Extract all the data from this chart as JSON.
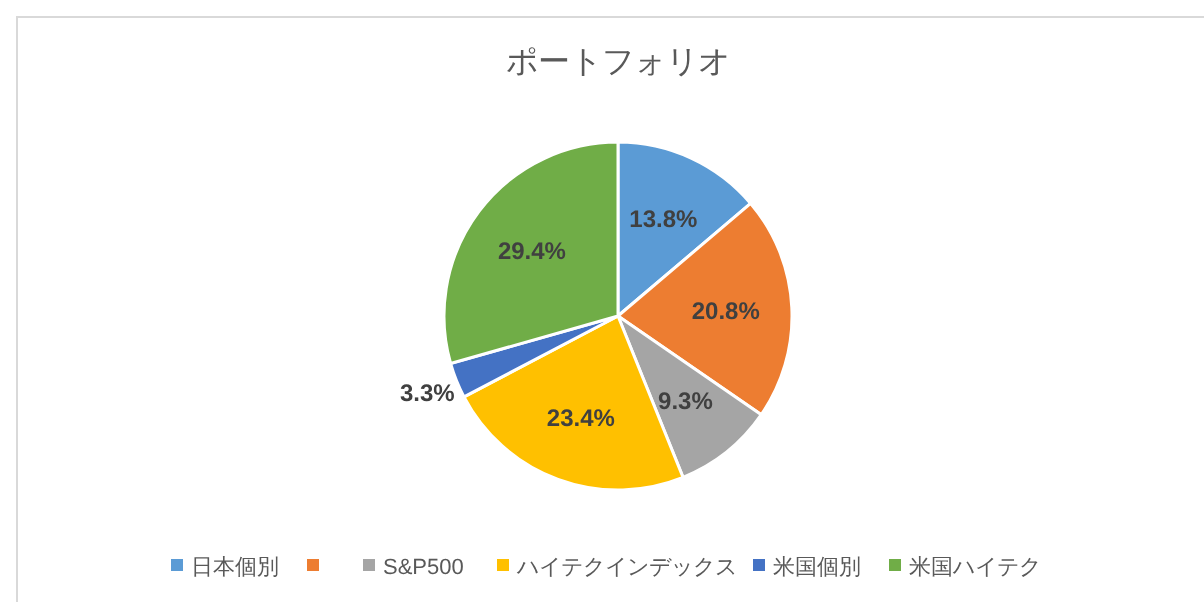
{
  "chart_data": {
    "type": "pie",
    "title": "ポートフォリオ",
    "categories": [
      "日本個別",
      null,
      "S&P500",
      "ハイテクインデックス",
      "米国個別",
      "米国ハイテク"
    ],
    "values": [
      13.8,
      20.8,
      9.3,
      23.4,
      3.3,
      29.4
    ],
    "colors": [
      "#5b9bd5",
      "#ed7d31",
      "#a5a5a5",
      "#ffc000",
      "#4472c4",
      "#70ad47"
    ],
    "value_labels": [
      "13.8%",
      "20.8%",
      "9.3%",
      "23.4%",
      "3.3%",
      "29.4%"
    ],
    "legend": "bottom"
  }
}
